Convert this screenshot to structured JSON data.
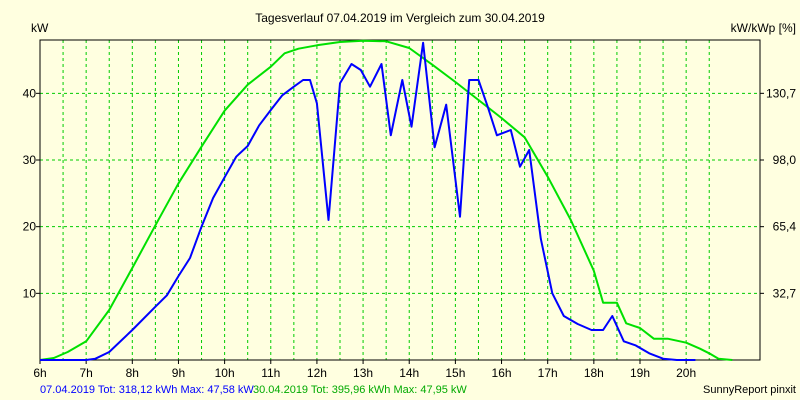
{
  "chart_data": {
    "type": "line",
    "title": "Tagesverlauf 07.04.2019 im Vergleich zum 30.04.2019",
    "ylabel": "kW",
    "ylabel_right": "kW/kWp [%]",
    "ylim": [
      0,
      48
    ],
    "xlim": [
      6,
      21.6
    ],
    "grid": true,
    "x_ticks": [
      6,
      7,
      8,
      9,
      10,
      11,
      12,
      13,
      14,
      15,
      16,
      17,
      18,
      19,
      20
    ],
    "x_tick_labels": [
      "6h",
      "7h",
      "8h",
      "9h",
      "10h",
      "11h",
      "12h",
      "13h",
      "14h",
      "15h",
      "16h",
      "17h",
      "18h",
      "19h",
      "20h"
    ],
    "y_ticks": [
      10,
      20,
      30,
      40
    ],
    "y_tick_labels": [
      "10",
      "20",
      "30",
      "40"
    ],
    "y2_ticks": [
      10,
      20,
      30,
      40
    ],
    "y2_tick_labels": [
      "32,7",
      "65,4",
      "98,0",
      "130,7"
    ],
    "series": [
      {
        "name": "07.04.2019",
        "color": "#0000ff",
        "x": [
          6,
          6.5,
          7,
          7.2,
          7.5,
          8,
          8.5,
          8.75,
          9,
          9.25,
          9.5,
          9.75,
          10,
          10.25,
          10.5,
          10.75,
          11,
          11.25,
          11.5,
          11.7,
          11.85,
          12,
          12.25,
          12.5,
          12.75,
          12.95,
          13.15,
          13.4,
          13.6,
          13.85,
          14.05,
          14.3,
          14.55,
          14.8,
          15.1,
          15.3,
          15.5,
          15.7,
          15.9,
          16.2,
          16.4,
          16.6,
          16.85,
          17.1,
          17.35,
          17.65,
          17.95,
          18.2,
          18.4,
          18.65,
          18.9,
          19.2,
          19.5,
          19.8,
          20.2
        ],
        "y": [
          0,
          0,
          0,
          0.2,
          1.2,
          4.5,
          8,
          9.7,
          12.6,
          15.3,
          20,
          24.3,
          27.4,
          30.5,
          32.1,
          35.2,
          37.5,
          39.7,
          41,
          42,
          42,
          38.5,
          21,
          41.5,
          44.4,
          43.5,
          41,
          44.4,
          33.7,
          42,
          35,
          47.6,
          31.9,
          38.3,
          21.5,
          42,
          42,
          38,
          33.7,
          34.5,
          29,
          31.5,
          18.2,
          10,
          6.6,
          5.4,
          4.5,
          4.5,
          6.6,
          2.8,
          2.2,
          1,
          0.2,
          0,
          0
        ]
      },
      {
        "name": "30.04.2019",
        "color": "#00e000",
        "x": [
          6,
          6.3,
          6.6,
          7,
          7.5,
          8,
          8.5,
          9,
          9.5,
          10,
          10.5,
          11,
          11.3,
          11.6,
          12,
          12.5,
          13,
          13.5,
          14,
          14.5,
          15,
          15.5,
          16,
          16.5,
          17,
          17.5,
          18,
          18.2,
          18.5,
          18.7,
          19,
          19.3,
          19.6,
          20,
          20.3,
          20.5,
          20.7,
          21
        ],
        "y": [
          0,
          0.3,
          1.2,
          2.8,
          7.5,
          13.8,
          20.2,
          26.5,
          32,
          37.4,
          41.3,
          44,
          46,
          46.7,
          47.2,
          47.7,
          47.9,
          47.8,
          46.8,
          44.3,
          41.7,
          39,
          36.3,
          33.4,
          27.5,
          21,
          13.4,
          8.6,
          8.6,
          5.5,
          4.8,
          3.2,
          3.2,
          2.6,
          1.7,
          1,
          0.2,
          0
        ]
      }
    ]
  },
  "footer": {
    "legend_a": "07.04.2019 Tot: 318,12 kWh Max: 47,58 kW",
    "legend_b": "30.04.2019 Tot: 395,96 kWh Max: 47,95 kW",
    "credit": "SunnyReport pinxit"
  },
  "colors": {
    "background": "#ffffe0",
    "grid": "#00cc00",
    "series_a": "#0000ff",
    "series_b": "#00e000",
    "legend_a": "#0000ff",
    "legend_b": "#00aa00"
  }
}
